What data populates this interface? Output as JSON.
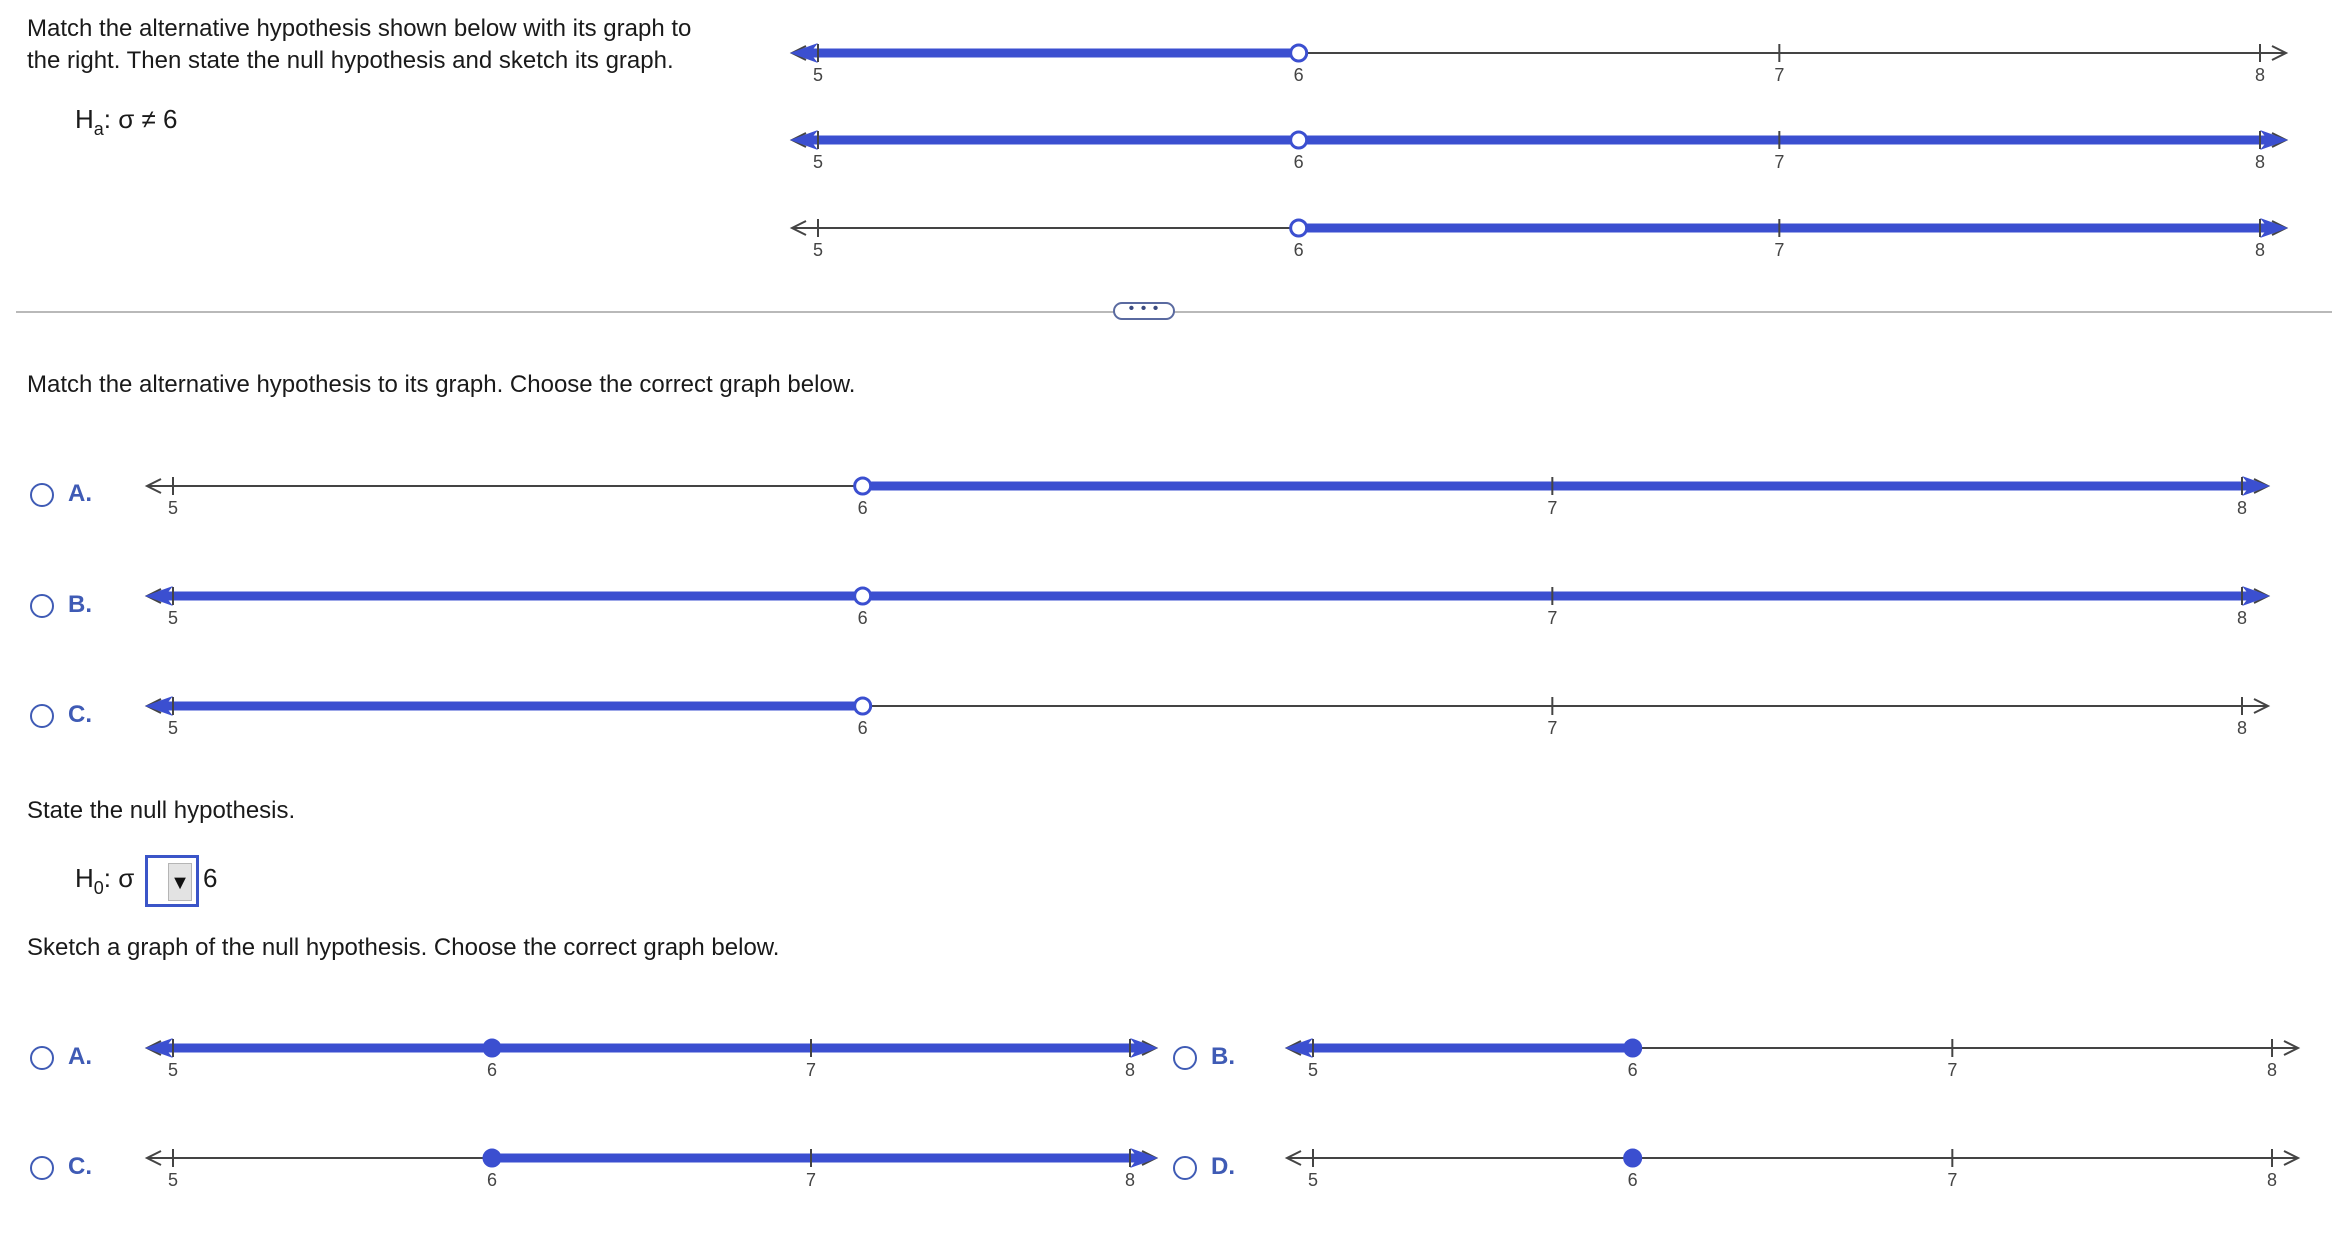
{
  "problem": {
    "instruction_line1": "Match the alternative hypothesis shown below with its graph to",
    "instruction_line2": "the right. Then state the null hypothesis and sketch its graph.",
    "alt_hyp_H": "H",
    "alt_hyp_sub": "a",
    "alt_hyp_rest": ": σ ≠ 6",
    "reference_graphs": [
      {
        "ticks": [
          "5",
          "6",
          "7",
          "8"
        ],
        "point": 6,
        "open": true,
        "shade": "left"
      },
      {
        "ticks": [
          "5",
          "6",
          "7",
          "8"
        ],
        "point": 6,
        "open": true,
        "shade": "both"
      },
      {
        "ticks": [
          "5",
          "6",
          "7",
          "8"
        ],
        "point": 6,
        "open": true,
        "shade": "right"
      }
    ]
  },
  "expand_button": "• • •",
  "part1": {
    "prompt": "Match the alternative hypothesis to its graph. Choose the correct graph below.",
    "options": [
      {
        "label": "A.",
        "ticks": [
          "5",
          "6",
          "7",
          "8"
        ],
        "point": 6,
        "open": true,
        "shade": "right"
      },
      {
        "label": "B.",
        "ticks": [
          "5",
          "6",
          "7",
          "8"
        ],
        "point": 6,
        "open": true,
        "shade": "both"
      },
      {
        "label": "C.",
        "ticks": [
          "5",
          "6",
          "7",
          "8"
        ],
        "point": 6,
        "open": true,
        "shade": "left"
      }
    ]
  },
  "part2": {
    "prompt": "State the null hypothesis.",
    "H": "H",
    "sub": "0",
    "sigma": ": σ",
    "select_value": "",
    "select_arrow": "▼",
    "value": "6"
  },
  "part3": {
    "prompt": "Sketch a graph of the null hypothesis. Choose the correct graph below.",
    "options": [
      {
        "label": "A.",
        "ticks": [
          "5",
          "6",
          "7",
          "8"
        ],
        "point": 6,
        "open": false,
        "shade": "both"
      },
      {
        "label": "B.",
        "ticks": [
          "5",
          "6",
          "7",
          "8"
        ],
        "point": 6,
        "open": false,
        "shade": "left"
      },
      {
        "label": "C.",
        "ticks": [
          "5",
          "6",
          "7",
          "8"
        ],
        "point": 6,
        "open": false,
        "shade": "right"
      },
      {
        "label": "D.",
        "ticks": [
          "5",
          "6",
          "7",
          "8"
        ],
        "point": 6,
        "open": false,
        "shade": "none"
      }
    ]
  },
  "colors": {
    "shade": "#3b4fd0",
    "axis": "#444444",
    "radio": "#3f5bb5"
  }
}
